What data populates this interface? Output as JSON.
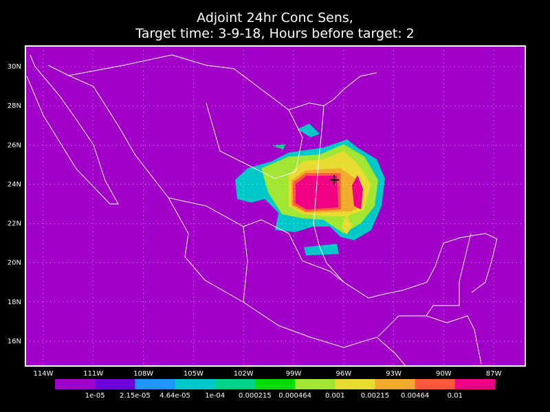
{
  "title": [
    "Adjoint 24hr Conc Sens,",
    "Target time: 3-9-18, Hours before target: 2"
  ],
  "map": {
    "lat_labels": [
      "30N",
      "28N",
      "26N",
      "24N",
      "22N",
      "20N",
      "18N",
      "16N"
    ],
    "lon_labels": [
      "114W",
      "111W",
      "108W",
      "105W",
      "102W",
      "99W",
      "96W",
      "93W",
      "90W",
      "87W"
    ],
    "grid": true
  },
  "colorbar": {
    "labels": [
      "1e-05",
      "2.15e-05",
      "4.64e-05",
      "1e-04",
      "0.000215",
      "0.000464",
      "0.001",
      "0.00215",
      "0.00464",
      "0.01"
    ],
    "colors": [
      "#a000c8",
      "#6e00dc",
      "#1e96ff",
      "#00c8c8",
      "#00d28c",
      "#00dc00",
      "#a0e632",
      "#e6dc32",
      "#f0aa2d",
      "#fa5a3c",
      "#f00082"
    ]
  }
}
